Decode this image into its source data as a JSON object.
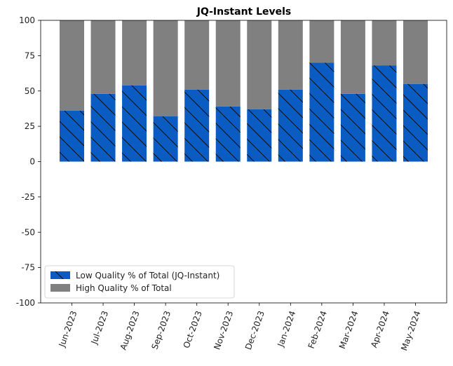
{
  "chart_data": {
    "type": "bar",
    "stacked": true,
    "title": "JQ-Instant Levels",
    "xlabel": "",
    "ylabel": "",
    "ylim": [
      -100,
      100
    ],
    "yticks": [
      100,
      75,
      50,
      25,
      0,
      -25,
      -50,
      -75,
      -100
    ],
    "categories": [
      "Jun-2023",
      "Jul-2023",
      "Aug-2023",
      "Sep-2023",
      "Oct-2023",
      "Nov-2023",
      "Dec-2023",
      "Jan-2024",
      "Feb-2024",
      "Mar-2024",
      "Apr-2024",
      "May-2024"
    ],
    "series": [
      {
        "name": "Low Quality % of Total (JQ-Instant)",
        "color": "#0a5cc2",
        "hatch": "diagonal",
        "values": [
          36,
          48,
          54,
          32,
          51,
          39,
          37,
          51,
          70,
          48,
          68,
          55
        ]
      },
      {
        "name": "High Quality % of Total",
        "color": "#808080",
        "values": [
          64,
          52,
          46,
          68,
          49,
          61,
          63,
          49,
          30,
          52,
          32,
          45
        ]
      }
    ],
    "grid": false,
    "legend_position": "lower-left"
  }
}
